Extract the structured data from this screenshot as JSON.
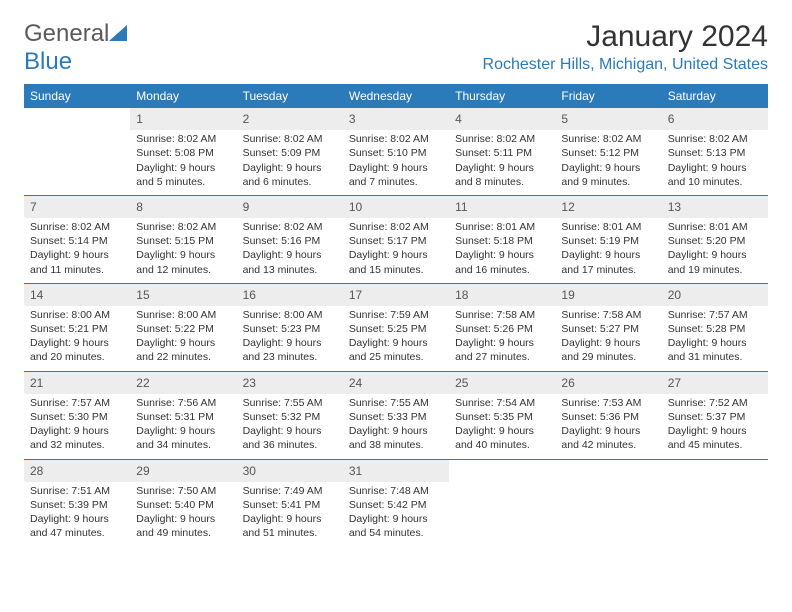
{
  "logo": {
    "text_general": "General",
    "text_blue": "Blue"
  },
  "header": {
    "title": "January 2024",
    "location": "Rochester Hills, Michigan, United States"
  },
  "colors": {
    "brand_blue": "#2b7bba",
    "header_text": "#ffffff",
    "daynum_bg": "#ededed",
    "daynum_text": "#555555",
    "body_text": "#333333",
    "logo_gray": "#5a5a5a",
    "bg": "#ffffff"
  },
  "typography": {
    "base_font": "Arial",
    "title_size_pt": 22,
    "location_size_pt": 12,
    "dow_size_pt": 9,
    "daynum_size_pt": 9,
    "body_size_pt": 8
  },
  "days_of_week": [
    "Sunday",
    "Monday",
    "Tuesday",
    "Wednesday",
    "Thursday",
    "Friday",
    "Saturday"
  ],
  "weeks": [
    [
      {
        "num": "",
        "sunrise": "",
        "sunset": "",
        "daylight": ""
      },
      {
        "num": "1",
        "sunrise": "Sunrise: 8:02 AM",
        "sunset": "Sunset: 5:08 PM",
        "daylight": "Daylight: 9 hours and 5 minutes."
      },
      {
        "num": "2",
        "sunrise": "Sunrise: 8:02 AM",
        "sunset": "Sunset: 5:09 PM",
        "daylight": "Daylight: 9 hours and 6 minutes."
      },
      {
        "num": "3",
        "sunrise": "Sunrise: 8:02 AM",
        "sunset": "Sunset: 5:10 PM",
        "daylight": "Daylight: 9 hours and 7 minutes."
      },
      {
        "num": "4",
        "sunrise": "Sunrise: 8:02 AM",
        "sunset": "Sunset: 5:11 PM",
        "daylight": "Daylight: 9 hours and 8 minutes."
      },
      {
        "num": "5",
        "sunrise": "Sunrise: 8:02 AM",
        "sunset": "Sunset: 5:12 PM",
        "daylight": "Daylight: 9 hours and 9 minutes."
      },
      {
        "num": "6",
        "sunrise": "Sunrise: 8:02 AM",
        "sunset": "Sunset: 5:13 PM",
        "daylight": "Daylight: 9 hours and 10 minutes."
      }
    ],
    [
      {
        "num": "7",
        "sunrise": "Sunrise: 8:02 AM",
        "sunset": "Sunset: 5:14 PM",
        "daylight": "Daylight: 9 hours and 11 minutes."
      },
      {
        "num": "8",
        "sunrise": "Sunrise: 8:02 AM",
        "sunset": "Sunset: 5:15 PM",
        "daylight": "Daylight: 9 hours and 12 minutes."
      },
      {
        "num": "9",
        "sunrise": "Sunrise: 8:02 AM",
        "sunset": "Sunset: 5:16 PM",
        "daylight": "Daylight: 9 hours and 13 minutes."
      },
      {
        "num": "10",
        "sunrise": "Sunrise: 8:02 AM",
        "sunset": "Sunset: 5:17 PM",
        "daylight": "Daylight: 9 hours and 15 minutes."
      },
      {
        "num": "11",
        "sunrise": "Sunrise: 8:01 AM",
        "sunset": "Sunset: 5:18 PM",
        "daylight": "Daylight: 9 hours and 16 minutes."
      },
      {
        "num": "12",
        "sunrise": "Sunrise: 8:01 AM",
        "sunset": "Sunset: 5:19 PM",
        "daylight": "Daylight: 9 hours and 17 minutes."
      },
      {
        "num": "13",
        "sunrise": "Sunrise: 8:01 AM",
        "sunset": "Sunset: 5:20 PM",
        "daylight": "Daylight: 9 hours and 19 minutes."
      }
    ],
    [
      {
        "num": "14",
        "sunrise": "Sunrise: 8:00 AM",
        "sunset": "Sunset: 5:21 PM",
        "daylight": "Daylight: 9 hours and 20 minutes."
      },
      {
        "num": "15",
        "sunrise": "Sunrise: 8:00 AM",
        "sunset": "Sunset: 5:22 PM",
        "daylight": "Daylight: 9 hours and 22 minutes."
      },
      {
        "num": "16",
        "sunrise": "Sunrise: 8:00 AM",
        "sunset": "Sunset: 5:23 PM",
        "daylight": "Daylight: 9 hours and 23 minutes."
      },
      {
        "num": "17",
        "sunrise": "Sunrise: 7:59 AM",
        "sunset": "Sunset: 5:25 PM",
        "daylight": "Daylight: 9 hours and 25 minutes."
      },
      {
        "num": "18",
        "sunrise": "Sunrise: 7:58 AM",
        "sunset": "Sunset: 5:26 PM",
        "daylight": "Daylight: 9 hours and 27 minutes."
      },
      {
        "num": "19",
        "sunrise": "Sunrise: 7:58 AM",
        "sunset": "Sunset: 5:27 PM",
        "daylight": "Daylight: 9 hours and 29 minutes."
      },
      {
        "num": "20",
        "sunrise": "Sunrise: 7:57 AM",
        "sunset": "Sunset: 5:28 PM",
        "daylight": "Daylight: 9 hours and 31 minutes."
      }
    ],
    [
      {
        "num": "21",
        "sunrise": "Sunrise: 7:57 AM",
        "sunset": "Sunset: 5:30 PM",
        "daylight": "Daylight: 9 hours and 32 minutes."
      },
      {
        "num": "22",
        "sunrise": "Sunrise: 7:56 AM",
        "sunset": "Sunset: 5:31 PM",
        "daylight": "Daylight: 9 hours and 34 minutes."
      },
      {
        "num": "23",
        "sunrise": "Sunrise: 7:55 AM",
        "sunset": "Sunset: 5:32 PM",
        "daylight": "Daylight: 9 hours and 36 minutes."
      },
      {
        "num": "24",
        "sunrise": "Sunrise: 7:55 AM",
        "sunset": "Sunset: 5:33 PM",
        "daylight": "Daylight: 9 hours and 38 minutes."
      },
      {
        "num": "25",
        "sunrise": "Sunrise: 7:54 AM",
        "sunset": "Sunset: 5:35 PM",
        "daylight": "Daylight: 9 hours and 40 minutes."
      },
      {
        "num": "26",
        "sunrise": "Sunrise: 7:53 AM",
        "sunset": "Sunset: 5:36 PM",
        "daylight": "Daylight: 9 hours and 42 minutes."
      },
      {
        "num": "27",
        "sunrise": "Sunrise: 7:52 AM",
        "sunset": "Sunset: 5:37 PM",
        "daylight": "Daylight: 9 hours and 45 minutes."
      }
    ],
    [
      {
        "num": "28",
        "sunrise": "Sunrise: 7:51 AM",
        "sunset": "Sunset: 5:39 PM",
        "daylight": "Daylight: 9 hours and 47 minutes."
      },
      {
        "num": "29",
        "sunrise": "Sunrise: 7:50 AM",
        "sunset": "Sunset: 5:40 PM",
        "daylight": "Daylight: 9 hours and 49 minutes."
      },
      {
        "num": "30",
        "sunrise": "Sunrise: 7:49 AM",
        "sunset": "Sunset: 5:41 PM",
        "daylight": "Daylight: 9 hours and 51 minutes."
      },
      {
        "num": "31",
        "sunrise": "Sunrise: 7:48 AM",
        "sunset": "Sunset: 5:42 PM",
        "daylight": "Daylight: 9 hours and 54 minutes."
      },
      {
        "num": "",
        "sunrise": "",
        "sunset": "",
        "daylight": ""
      },
      {
        "num": "",
        "sunrise": "",
        "sunset": "",
        "daylight": ""
      },
      {
        "num": "",
        "sunrise": "",
        "sunset": "",
        "daylight": ""
      }
    ]
  ]
}
